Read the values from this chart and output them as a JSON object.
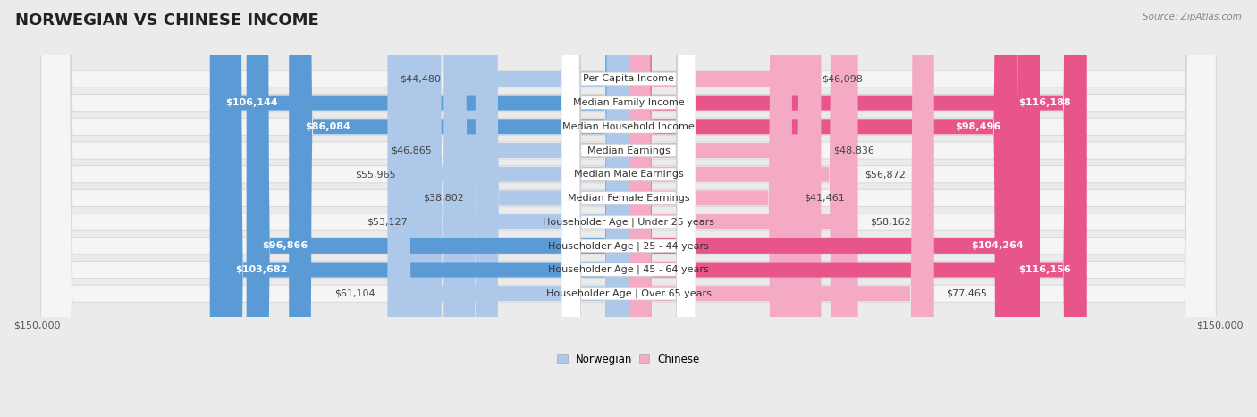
{
  "title": "NORWEGIAN VS CHINESE INCOME",
  "source": "Source: ZipAtlas.com",
  "categories": [
    "Per Capita Income",
    "Median Family Income",
    "Median Household Income",
    "Median Earnings",
    "Median Male Earnings",
    "Median Female Earnings",
    "Householder Age | Under 25 years",
    "Householder Age | 25 - 44 years",
    "Householder Age | 45 - 64 years",
    "Householder Age | Over 65 years"
  ],
  "norwegian_values": [
    44480,
    106144,
    86084,
    46865,
    55965,
    38802,
    53127,
    96866,
    103682,
    61104
  ],
  "chinese_values": [
    46098,
    116188,
    98496,
    48836,
    56872,
    41461,
    58162,
    104264,
    116156,
    77465
  ],
  "norwegian_light_color": "#adc8e8",
  "chinese_light_color": "#f4aac4",
  "norwegian_dark_color": "#5b9bd5",
  "chinese_dark_color": "#e8558a",
  "dark_threshold": 80000,
  "max_value": 150000,
  "bg_color": "#ebebeb",
  "row_bg_color": "#f5f5f5",
  "row_border_color": "#d8d8d8",
  "label_bg_color": "#ffffff",
  "label_border_color": "#d0d0d0",
  "title_fontsize": 13,
  "label_fontsize": 8,
  "value_fontsize": 8,
  "axis_label_fontsize": 8
}
